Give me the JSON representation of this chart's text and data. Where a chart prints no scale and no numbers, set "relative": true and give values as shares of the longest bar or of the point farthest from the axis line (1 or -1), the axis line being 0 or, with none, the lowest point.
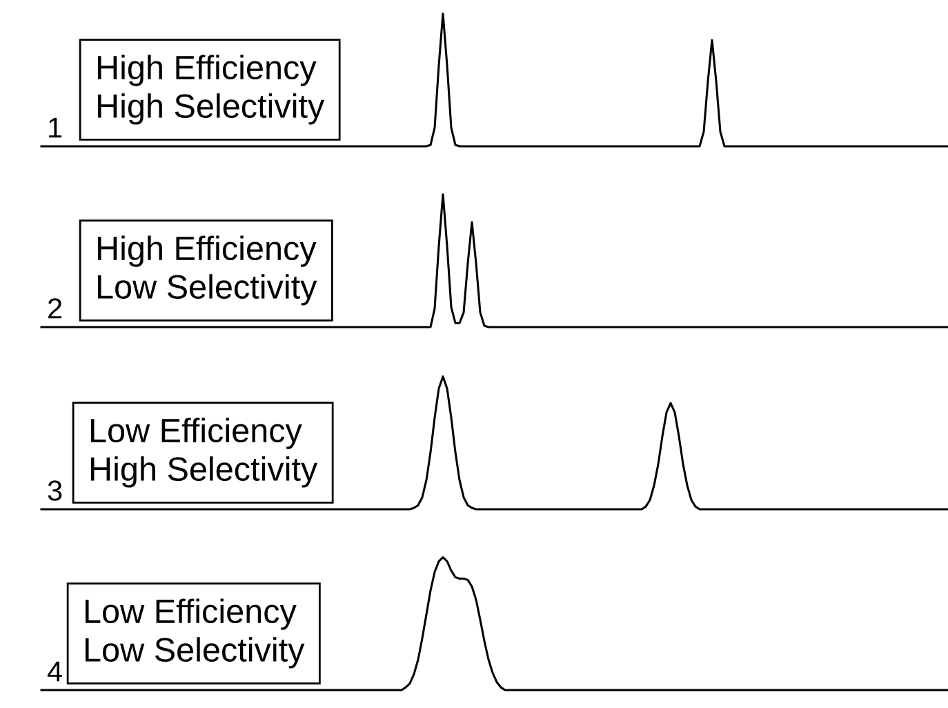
{
  "chart_data": [
    {
      "type": "line",
      "relative": true,
      "color": "#000000",
      "annotations": [
        "1",
        "High Efficiency\nHigh Selectivity"
      ],
      "categories": [
        null,
        null,
        null,
        null,
        null,
        null,
        null,
        null,
        null,
        null,
        null,
        null,
        null,
        null,
        null,
        null,
        null,
        null,
        null,
        null,
        null,
        null,
        null,
        null,
        null,
        null,
        null,
        null,
        null,
        null,
        null,
        null,
        null,
        null,
        null,
        null,
        null,
        null,
        null,
        null,
        null,
        null,
        null,
        null,
        null,
        null,
        null,
        null,
        null,
        null,
        null,
        null,
        null,
        null,
        null,
        null,
        null,
        null,
        null,
        null,
        null,
        null,
        null,
        null,
        null,
        null,
        null,
        null,
        null,
        null,
        null,
        null,
        null,
        null,
        null,
        null,
        null,
        null,
        null,
        null,
        null,
        null,
        null,
        null,
        null,
        null,
        null,
        null,
        null,
        null,
        null,
        null,
        null,
        null,
        null,
        null,
        null,
        null,
        null,
        null,
        null,
        null,
        null,
        null,
        null,
        null,
        null,
        null,
        null,
        null,
        null,
        null,
        null,
        null,
        null,
        null,
        null,
        null,
        null,
        null,
        null,
        null,
        null,
        null,
        null,
        null,
        null,
        null,
        null,
        null,
        null,
        null,
        null,
        null,
        null,
        null,
        null,
        null,
        null,
        null,
        null,
        null,
        null,
        null,
        null,
        null,
        null,
        null,
        null,
        null,
        null,
        null,
        null,
        null,
        null,
        null,
        null,
        null,
        null,
        null,
        null,
        null,
        null,
        null,
        null,
        null,
        null,
        null,
        null,
        null,
        null,
        null,
        null,
        null,
        null,
        null,
        null,
        null,
        null,
        null,
        null,
        null,
        null,
        null,
        null,
        null,
        null,
        null,
        null,
        null,
        null,
        null,
        null,
        null,
        null,
        null,
        null,
        null,
        null,
        null,
        null,
        null,
        null,
        null,
        null,
        null,
        null,
        null,
        null,
        null,
        null,
        null,
        null,
        null,
        null,
        null,
        null,
        null,
        null,
        null
      ],
      "values": [
        0,
        0,
        0,
        0,
        0,
        0,
        0,
        0,
        0,
        0,
        0,
        0,
        0,
        0,
        0,
        0,
        0,
        0,
        0,
        0,
        0,
        0,
        0,
        0,
        0,
        0,
        0,
        0,
        0,
        0,
        0,
        0,
        0,
        0,
        0,
        0,
        0,
        0,
        0,
        0,
        0,
        0,
        0,
        0,
        0,
        0,
        0,
        0,
        0,
        0,
        0,
        0,
        0,
        0,
        0,
        0,
        0,
        0,
        0,
        0,
        0,
        0,
        0,
        0,
        0,
        0,
        0,
        0,
        0,
        0,
        0,
        0,
        0,
        0,
        0,
        0,
        0,
        0,
        0,
        0,
        0,
        0,
        0,
        0,
        0,
        0,
        0,
        0,
        0,
        0,
        0,
        0,
        0,
        0,
        0.01,
        0.14,
        0.61,
        1,
        0.61,
        0.14,
        0.01,
        0,
        0,
        0,
        0,
        0,
        0,
        0,
        0,
        0,
        0,
        0,
        0,
        0,
        0,
        0,
        0,
        0,
        0,
        0,
        0,
        0,
        0,
        0,
        0,
        0,
        0,
        0,
        0,
        0,
        0,
        0,
        0,
        0,
        0,
        0,
        0,
        0,
        0,
        0,
        0,
        0,
        0,
        0,
        0,
        0,
        0,
        0,
        0,
        0,
        0,
        0,
        0,
        0,
        0,
        0,
        0,
        0,
        0,
        0,
        0.11,
        0.49,
        0.8,
        0.49,
        0.11,
        0,
        0,
        0,
        0,
        0,
        0,
        0,
        0,
        0,
        0,
        0,
        0,
        0,
        0,
        0,
        0,
        0,
        0,
        0,
        0,
        0,
        0,
        0,
        0,
        0,
        0,
        0,
        0,
        0,
        0,
        0,
        0,
        0,
        0,
        0,
        0,
        0,
        0,
        0,
        0,
        0,
        0,
        0,
        0,
        0,
        0,
        0,
        0,
        0,
        0,
        0,
        0,
        0,
        0,
        0
      ]
    },
    {
      "type": "line",
      "relative": true,
      "color": "#000000",
      "annotations": [
        "2",
        "High Efficiency\nLow Selectivity"
      ],
      "categories": [
        null,
        null,
        null,
        null,
        null,
        null,
        null,
        null,
        null,
        null,
        null,
        null,
        null,
        null,
        null,
        null,
        null,
        null,
        null,
        null,
        null,
        null,
        null,
        null,
        null,
        null,
        null,
        null,
        null,
        null,
        null,
        null,
        null,
        null,
        null,
        null,
        null,
        null,
        null,
        null,
        null,
        null,
        null,
        null,
        null,
        null,
        null,
        null,
        null,
        null,
        null,
        null,
        null,
        null,
        null,
        null,
        null,
        null,
        null,
        null,
        null,
        null,
        null,
        null,
        null,
        null,
        null,
        null,
        null,
        null,
        null,
        null,
        null,
        null,
        null,
        null,
        null,
        null,
        null,
        null,
        null,
        null,
        null,
        null,
        null,
        null,
        null,
        null,
        null,
        null,
        null,
        null,
        null,
        null,
        null,
        null,
        null,
        null,
        null,
        null,
        null,
        null,
        null,
        null,
        null,
        null,
        null,
        null,
        null,
        null,
        null,
        null,
        null,
        null,
        null,
        null,
        null,
        null,
        null,
        null,
        null,
        null,
        null,
        null,
        null,
        null,
        null,
        null,
        null,
        null,
        null,
        null,
        null,
        null,
        null,
        null,
        null,
        null,
        null,
        null,
        null,
        null,
        null,
        null,
        null,
        null,
        null,
        null,
        null,
        null,
        null,
        null,
        null,
        null,
        null,
        null,
        null,
        null,
        null,
        null,
        null,
        null,
        null,
        null,
        null,
        null,
        null,
        null,
        null,
        null,
        null,
        null,
        null,
        null,
        null,
        null,
        null,
        null,
        null,
        null,
        null,
        null,
        null,
        null,
        null,
        null,
        null,
        null,
        null,
        null,
        null,
        null,
        null,
        null,
        null,
        null,
        null,
        null,
        null,
        null,
        null,
        null,
        null,
        null,
        null,
        null,
        null,
        null,
        null,
        null,
        null,
        null,
        null,
        null,
        null,
        null,
        null,
        null,
        null,
        null
      ],
      "values": [
        0,
        0,
        0,
        0,
        0,
        0,
        0,
        0,
        0,
        0,
        0,
        0,
        0,
        0,
        0,
        0,
        0,
        0,
        0,
        0,
        0,
        0,
        0,
        0,
        0,
        0,
        0,
        0,
        0,
        0,
        0,
        0,
        0,
        0,
        0,
        0,
        0,
        0,
        0,
        0,
        0,
        0,
        0,
        0,
        0,
        0,
        0,
        0,
        0,
        0,
        0,
        0,
        0,
        0,
        0,
        0,
        0,
        0,
        0,
        0,
        0,
        0,
        0,
        0,
        0,
        0,
        0,
        0,
        0,
        0,
        0,
        0,
        0,
        0,
        0,
        0,
        0,
        0,
        0,
        0,
        0,
        0,
        0,
        0,
        0,
        0,
        0,
        0,
        0,
        0,
        0,
        0,
        0,
        0,
        0,
        0.14,
        0.61,
        1,
        0.61,
        0.15,
        0.03,
        0.03,
        0.11,
        0.48,
        0.79,
        0.48,
        0.11,
        0.01,
        0,
        0,
        0,
        0,
        0,
        0,
        0,
        0,
        0,
        0,
        0,
        0,
        0,
        0,
        0,
        0,
        0,
        0,
        0,
        0,
        0,
        0,
        0,
        0,
        0,
        0,
        0,
        0,
        0,
        0,
        0,
        0,
        0,
        0,
        0,
        0,
        0,
        0,
        0,
        0,
        0,
        0,
        0,
        0,
        0,
        0,
        0,
        0,
        0,
        0,
        0,
        0,
        0,
        0,
        0,
        0,
        0,
        0,
        0,
        0,
        0,
        0,
        0,
        0,
        0,
        0,
        0,
        0,
        0,
        0,
        0,
        0,
        0,
        0,
        0,
        0,
        0,
        0,
        0,
        0,
        0,
        0,
        0,
        0,
        0,
        0,
        0,
        0,
        0,
        0,
        0,
        0,
        0,
        0,
        0,
        0,
        0,
        0,
        0,
        0,
        0,
        0,
        0,
        0,
        0,
        0,
        0,
        0,
        0,
        0,
        0,
        0
      ]
    },
    {
      "type": "line",
      "relative": true,
      "color": "#000000",
      "annotations": [
        "3",
        "Low Efficiency\nHigh Selectivity"
      ],
      "categories": [
        null,
        null,
        null,
        null,
        null,
        null,
        null,
        null,
        null,
        null,
        null,
        null,
        null,
        null,
        null,
        null,
        null,
        null,
        null,
        null,
        null,
        null,
        null,
        null,
        null,
        null,
        null,
        null,
        null,
        null,
        null,
        null,
        null,
        null,
        null,
        null,
        null,
        null,
        null,
        null,
        null,
        null,
        null,
        null,
        null,
        null,
        null,
        null,
        null,
        null,
        null,
        null,
        null,
        null,
        null,
        null,
        null,
        null,
        null,
        null,
        null,
        null,
        null,
        null,
        null,
        null,
        null,
        null,
        null,
        null,
        null,
        null,
        null,
        null,
        null,
        null,
        null,
        null,
        null,
        null,
        null,
        null,
        null,
        null,
        null,
        null,
        null,
        null,
        null,
        null,
        null,
        null,
        null,
        null,
        null,
        null,
        null,
        null,
        null,
        null,
        null,
        null,
        null,
        null,
        null,
        null,
        null,
        null,
        null,
        null,
        null,
        null,
        null,
        null,
        null,
        null,
        null,
        null,
        null,
        null,
        null,
        null,
        null,
        null,
        null,
        null,
        null,
        null,
        null,
        null,
        null,
        null,
        null,
        null,
        null,
        null,
        null,
        null,
        null,
        null,
        null,
        null,
        null,
        null,
        null,
        null,
        null,
        null,
        null,
        null,
        null,
        null,
        null,
        null,
        null,
        null,
        null,
        null,
        null,
        null,
        null,
        null,
        null,
        null,
        null,
        null,
        null,
        null,
        null,
        null,
        null,
        null,
        null,
        null,
        null,
        null,
        null,
        null,
        null,
        null,
        null,
        null,
        null,
        null,
        null,
        null,
        null,
        null,
        null,
        null,
        null,
        null,
        null,
        null,
        null,
        null,
        null,
        null,
        null,
        null,
        null,
        null,
        null,
        null,
        null,
        null,
        null,
        null,
        null,
        null,
        null,
        null,
        null,
        null,
        null,
        null,
        null,
        null,
        null,
        null
      ],
      "values": [
        0,
        0,
        0,
        0,
        0,
        0,
        0,
        0,
        0,
        0,
        0,
        0,
        0,
        0,
        0,
        0,
        0,
        0,
        0,
        0,
        0,
        0,
        0,
        0,
        0,
        0,
        0,
        0,
        0,
        0,
        0,
        0,
        0,
        0,
        0,
        0,
        0,
        0,
        0,
        0,
        0,
        0,
        0,
        0,
        0,
        0,
        0,
        0,
        0,
        0,
        0,
        0,
        0,
        0,
        0,
        0,
        0,
        0,
        0,
        0,
        0,
        0,
        0,
        0,
        0,
        0,
        0,
        0,
        0,
        0,
        0,
        0,
        0,
        0,
        0,
        0,
        0,
        0,
        0,
        0,
        0,
        0,
        0,
        0,
        0,
        0,
        0,
        0,
        0,
        0,
        0.01,
        0.03,
        0.09,
        0.22,
        0.43,
        0.69,
        0.91,
        1,
        0.91,
        0.69,
        0.43,
        0.22,
        0.09,
        0.03,
        0.01,
        0,
        0,
        0,
        0,
        0,
        0,
        0,
        0,
        0,
        0,
        0,
        0,
        0,
        0,
        0,
        0,
        0,
        0,
        0,
        0,
        0,
        0,
        0,
        0,
        0,
        0,
        0,
        0,
        0,
        0,
        0,
        0,
        0,
        0,
        0,
        0,
        0,
        0,
        0,
        0,
        0,
        0.02,
        0.07,
        0.18,
        0.34,
        0.55,
        0.73,
        0.8,
        0.73,
        0.55,
        0.34,
        0.18,
        0.07,
        0.02,
        0,
        0,
        0,
        0,
        0,
        0,
        0,
        0,
        0,
        0,
        0,
        0,
        0,
        0,
        0,
        0,
        0,
        0,
        0,
        0,
        0,
        0,
        0,
        0,
        0,
        0,
        0,
        0,
        0,
        0,
        0,
        0,
        0,
        0,
        0,
        0,
        0,
        0,
        0,
        0,
        0,
        0,
        0,
        0,
        0,
        0,
        0,
        0,
        0,
        0,
        0,
        0,
        0,
        0,
        0,
        0,
        0,
        0,
        0,
        0,
        0
      ]
    },
    {
      "type": "line",
      "relative": true,
      "color": "#000000",
      "annotations": [
        "4",
        "Low Efficiency\nLow Selectivity"
      ],
      "categories": [
        null,
        null,
        null,
        null,
        null,
        null,
        null,
        null,
        null,
        null,
        null,
        null,
        null,
        null,
        null,
        null,
        null,
        null,
        null,
        null,
        null,
        null,
        null,
        null,
        null,
        null,
        null,
        null,
        null,
        null,
        null,
        null,
        null,
        null,
        null,
        null,
        null,
        null,
        null,
        null,
        null,
        null,
        null,
        null,
        null,
        null,
        null,
        null,
        null,
        null,
        null,
        null,
        null,
        null,
        null,
        null,
        null,
        null,
        null,
        null,
        null,
        null,
        null,
        null,
        null,
        null,
        null,
        null,
        null,
        null,
        null,
        null,
        null,
        null,
        null,
        null,
        null,
        null,
        null,
        null,
        null,
        null,
        null,
        null,
        null,
        null,
        null,
        null,
        null,
        null,
        null,
        null,
        null,
        null,
        null,
        null,
        null,
        null,
        null,
        null,
        null,
        null,
        null,
        null,
        null,
        null,
        null,
        null,
        null,
        null,
        null,
        null,
        null,
        null,
        null,
        null,
        null,
        null,
        null,
        null,
        null,
        null,
        null,
        null,
        null,
        null,
        null,
        null,
        null,
        null,
        null,
        null,
        null,
        null,
        null,
        null,
        null,
        null,
        null,
        null,
        null,
        null,
        null,
        null,
        null,
        null,
        null,
        null,
        null,
        null,
        null,
        null,
        null,
        null,
        null,
        null,
        null,
        null,
        null,
        null,
        null,
        null,
        null,
        null,
        null,
        null,
        null,
        null,
        null,
        null,
        null,
        null,
        null,
        null,
        null,
        null,
        null,
        null,
        null,
        null,
        null,
        null,
        null,
        null,
        null,
        null,
        null,
        null,
        null,
        null,
        null,
        null,
        null,
        null,
        null,
        null,
        null,
        null,
        null,
        null,
        null,
        null,
        null,
        null,
        null,
        null,
        null,
        null,
        null,
        null,
        null,
        null,
        null,
        null,
        null,
        null,
        null,
        null,
        null,
        null
      ],
      "values": [
        0,
        0,
        0,
        0,
        0,
        0,
        0,
        0,
        0,
        0,
        0,
        0,
        0,
        0,
        0,
        0,
        0,
        0,
        0,
        0,
        0,
        0,
        0,
        0,
        0,
        0,
        0,
        0,
        0,
        0,
        0,
        0,
        0,
        0,
        0,
        0,
        0,
        0,
        0,
        0,
        0,
        0,
        0,
        0,
        0,
        0,
        0,
        0,
        0,
        0,
        0,
        0,
        0,
        0,
        0,
        0,
        0,
        0,
        0,
        0,
        0,
        0,
        0,
        0,
        0,
        0,
        0,
        0,
        0,
        0,
        0,
        0,
        0,
        0,
        0,
        0,
        0,
        0,
        0,
        0,
        0,
        0,
        0,
        0,
        0,
        0,
        0,
        0,
        0.02,
        0.05,
        0.12,
        0.23,
        0.39,
        0.57,
        0.75,
        0.89,
        0.97,
        1,
        0.97,
        0.9,
        0.85,
        0.84,
        0.84,
        0.83,
        0.78,
        0.68,
        0.53,
        0.37,
        0.23,
        0.13,
        0.06,
        0.02,
        0,
        0,
        0,
        0,
        0,
        0,
        0,
        0,
        0,
        0,
        0,
        0,
        0,
        0,
        0,
        0,
        0,
        0,
        0,
        0,
        0,
        0,
        0,
        0,
        0,
        0,
        0,
        0,
        0,
        0,
        0,
        0,
        0,
        0,
        0,
        0,
        0,
        0,
        0,
        0,
        0,
        0,
        0,
        0,
        0,
        0,
        0,
        0,
        0,
        0,
        0,
        0,
        0,
        0,
        0,
        0,
        0,
        0,
        0,
        0,
        0,
        0,
        0,
        0,
        0,
        0,
        0,
        0,
        0,
        0,
        0,
        0,
        0,
        0,
        0,
        0,
        0,
        0,
        0,
        0,
        0,
        0,
        0,
        0,
        0,
        0,
        0,
        0,
        0,
        0,
        0,
        0,
        0,
        0,
        0,
        0,
        0,
        0,
        0,
        0,
        0,
        0,
        0,
        0,
        0,
        0,
        0,
        0
      ]
    }
  ]
}
